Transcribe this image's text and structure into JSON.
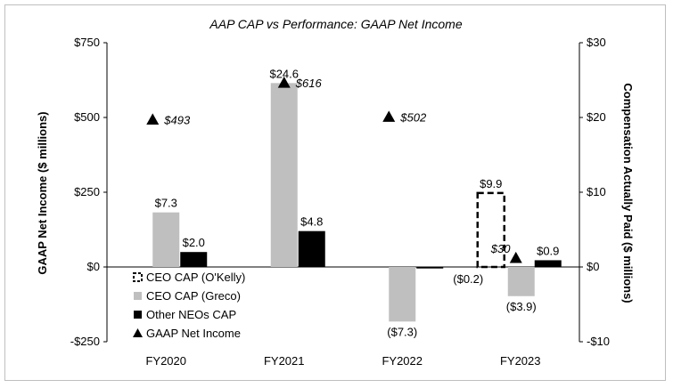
{
  "chart_data": {
    "type": "bar",
    "title": "AAP CAP vs Performance: GAAP Net Income",
    "categories": [
      "FY2020",
      "FY2021",
      "FY2022",
      "FY2023"
    ],
    "y_left": {
      "label": "GAAP Net Income ($ millions)",
      "range": [
        -250,
        750
      ],
      "ticks": [
        -250,
        0,
        250,
        500,
        750
      ],
      "tick_labels": [
        "-$250",
        "$0",
        "$250",
        "$500",
        "$750"
      ]
    },
    "y_right": {
      "label": "Compensation Actually Paid ($ millions)",
      "range": [
        -10,
        30
      ],
      "ticks": [
        -10,
        0,
        10,
        20,
        30
      ],
      "tick_labels": [
        "-$10",
        "$0",
        "$10",
        "$20",
        "$30"
      ]
    },
    "series": [
      {
        "name": "CEO CAP (O'Kelly)",
        "axis": "right",
        "style": "dashed-outline",
        "color": "#000000",
        "values": [
          null,
          null,
          null,
          9.9
        ],
        "labels": [
          "",
          "",
          "",
          "$9.9"
        ]
      },
      {
        "name": "CEO CAP (Greco)",
        "axis": "right",
        "style": "bar",
        "color": "#bfbfbf",
        "values": [
          7.3,
          24.6,
          -7.3,
          -3.9
        ],
        "labels": [
          "$7.3",
          "$24.6",
          "($7.3)",
          "($3.9)"
        ]
      },
      {
        "name": "Other NEOs CAP",
        "axis": "right",
        "style": "bar",
        "color": "#000000",
        "values": [
          2.0,
          4.8,
          -0.2,
          0.9
        ],
        "labels": [
          "$2.0",
          "$4.8",
          "($0.2)",
          "$0.9"
        ]
      },
      {
        "name": "GAAP Net Income",
        "axis": "left",
        "style": "triangle-marker",
        "color": "#000000",
        "values": [
          493,
          616,
          502,
          30
        ],
        "labels": [
          "$493",
          "$616",
          "$502",
          "$30"
        ]
      }
    ],
    "legend_position": "bottom-left",
    "grid": false
  }
}
